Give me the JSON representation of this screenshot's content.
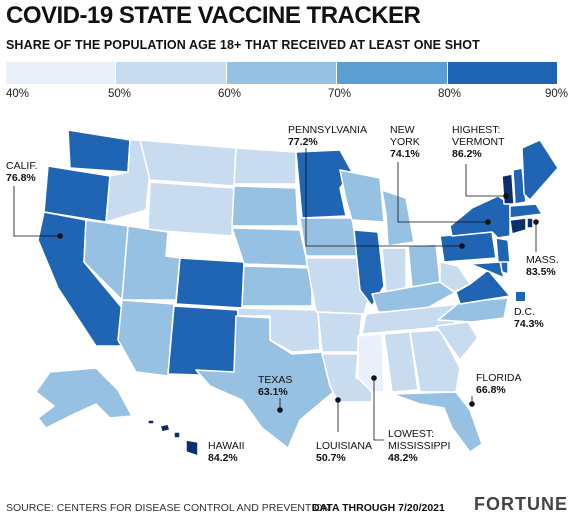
{
  "title": "COVID-19 STATE VACCINE TRACKER",
  "subtitle": "SHARE OF THE POPULATION AGE 18+ THAT RECEIVED AT LEAST ONE SHOT",
  "legend": {
    "colors": [
      "#eaf0fa",
      "#c9dcef",
      "#97c1e2",
      "#5b9fd3",
      "#1f65b4",
      "#0c2f6b"
    ],
    "ticks": [
      "40%",
      "50%",
      "60%",
      "70%",
      "80%",
      "90%"
    ]
  },
  "callouts": {
    "pennsylvania": {
      "name": "PENNSYLVANIA",
      "value": "77.2%"
    },
    "new_york": {
      "name_line1": "NEW",
      "name_line2": "YORK",
      "value": "74.1%"
    },
    "vermont": {
      "name_line1": "HIGHEST:",
      "name_line2": "VERMONT",
      "value": "86.2%"
    },
    "california": {
      "name": "CALIF.",
      "value": "76.8%"
    },
    "massachusetts": {
      "name": "MASS.",
      "value": "83.5%"
    },
    "dc": {
      "name": "D.C.",
      "value": "74.3%"
    },
    "texas": {
      "name": "TEXAS",
      "value": "63.1%"
    },
    "florida": {
      "name": "FLORIDA",
      "value": "66.8%"
    },
    "hawaii": {
      "name": "HAWAII",
      "value": "84.2%"
    },
    "louisiana": {
      "name": "LOUISIANA",
      "value": "50.7%"
    },
    "mississippi": {
      "name_line1": "LOWEST:",
      "name_line2": "MISSISSIPPI",
      "value": "48.2%"
    }
  },
  "footer": {
    "source": "SOURCE: CENTERS FOR DISEASE CONTROL AND PREVENTION",
    "data_through": "DATA THROUGH 7/20/2021",
    "brand": "FORTUNE"
  }
}
